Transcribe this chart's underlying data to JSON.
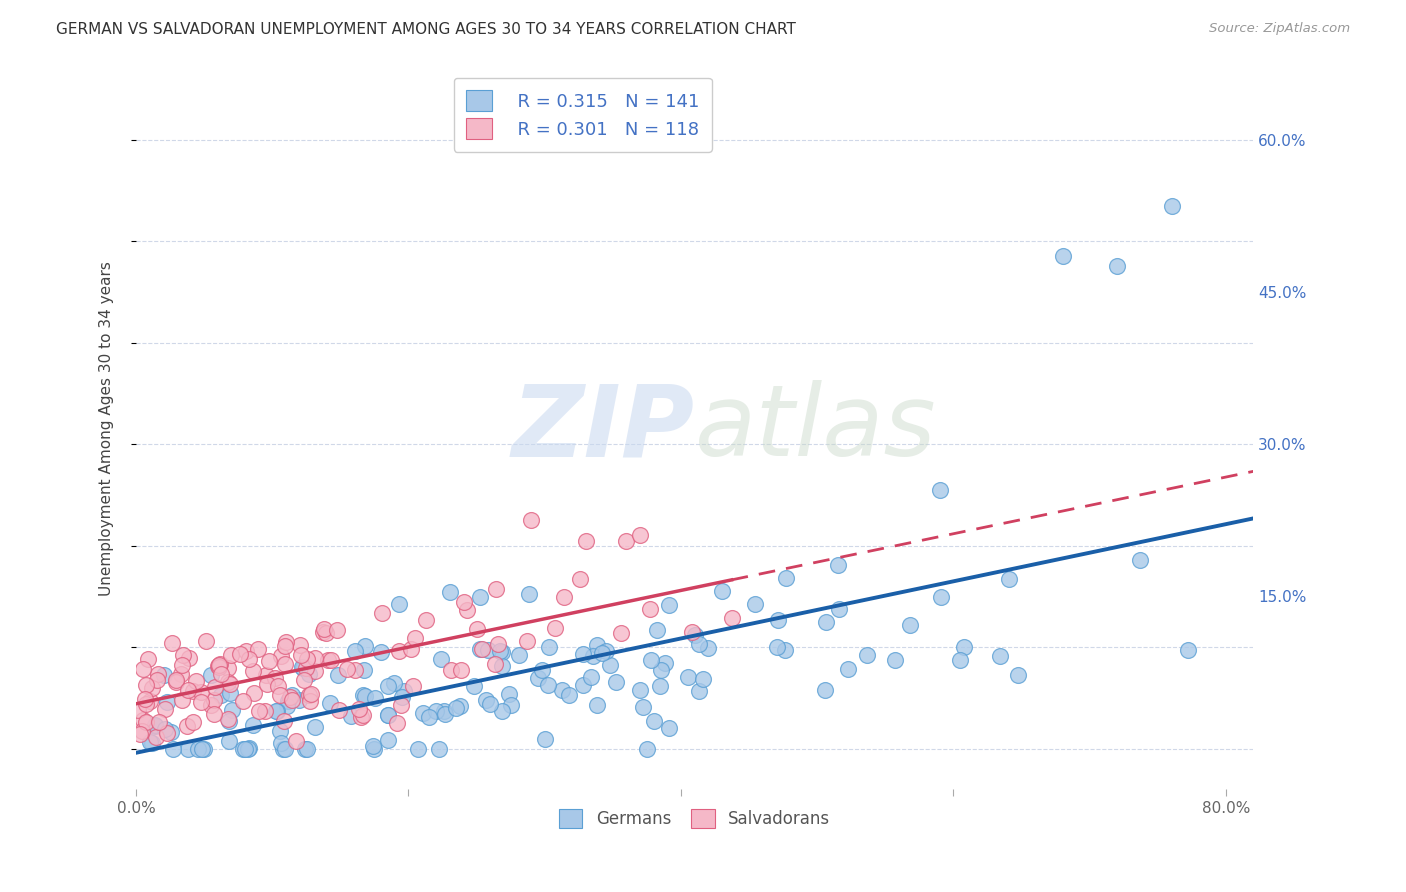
{
  "title": "GERMAN VS SALVADORAN UNEMPLOYMENT AMONG AGES 30 TO 34 YEARS CORRELATION CHART",
  "source": "Source: ZipAtlas.com",
  "ylabel": "Unemployment Among Ages 30 to 34 years",
  "xlim": [
    0.0,
    0.82
  ],
  "ylim": [
    -0.04,
    0.67
  ],
  "xtick_positions": [
    0.0,
    0.2,
    0.4,
    0.6,
    0.8
  ],
  "xticklabels": [
    "0.0%",
    "",
    "",
    "",
    "80.0%"
  ],
  "ytick_positions": [
    0.0,
    0.15,
    0.3,
    0.45,
    0.6
  ],
  "ytick_labels": [
    "",
    "15.0%",
    "30.0%",
    "45.0%",
    "60.0%"
  ],
  "german_color": "#a8c8e8",
  "german_edge_color": "#5a9fd4",
  "salvadoran_color": "#f5b8c8",
  "salvadoran_edge_color": "#e06080",
  "german_line_color": "#1a5fa8",
  "salvadoran_line_color": "#d04060",
  "axis_label_color": "#4472c4",
  "watermark_zip": "ZIP",
  "watermark_atlas": "atlas",
  "grid_color": "#d0d8e8",
  "R_german": 0.315,
  "N_german": 141,
  "R_salvadoran": 0.301,
  "N_salvadoran": 118
}
